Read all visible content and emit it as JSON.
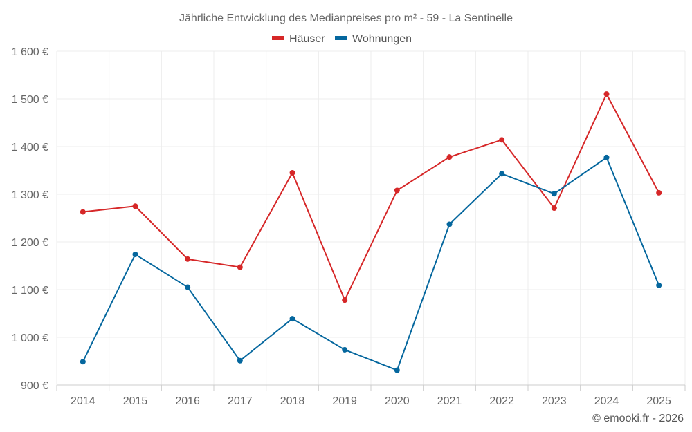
{
  "chart_data": {
    "type": "line",
    "title": "Jährliche Entwicklung des Medianpreises pro m² - 59 - La Sentinelle",
    "categories": [
      "2014",
      "2015",
      "2016",
      "2017",
      "2018",
      "2019",
      "2020",
      "2021",
      "2022",
      "2023",
      "2024",
      "2025"
    ],
    "series": [
      {
        "name": "Häuser",
        "color": "#d62728",
        "values": [
          1263,
          1275,
          1164,
          1147,
          1345,
          1078,
          1308,
          1378,
          1414,
          1271,
          1510,
          1303
        ]
      },
      {
        "name": "Wohnungen",
        "color": "#05679e",
        "values": [
          949,
          1174,
          1105,
          951,
          1039,
          974,
          931,
          1237,
          1343,
          1301,
          1377,
          1109
        ]
      }
    ],
    "ylim": [
      900,
      1600
    ],
    "yticks": [
      900,
      1000,
      1100,
      1200,
      1300,
      1400,
      1500,
      1600
    ],
    "ytick_labels": [
      "900 €",
      "1 000 €",
      "1 100 €",
      "1 200 €",
      "1 300 €",
      "1 400 €",
      "1 500 €",
      "1 600 €"
    ],
    "xlabel": "",
    "ylabel": "",
    "grid": true,
    "legend_position": "top-center"
  },
  "credit": "© emooki.fr - 2026"
}
